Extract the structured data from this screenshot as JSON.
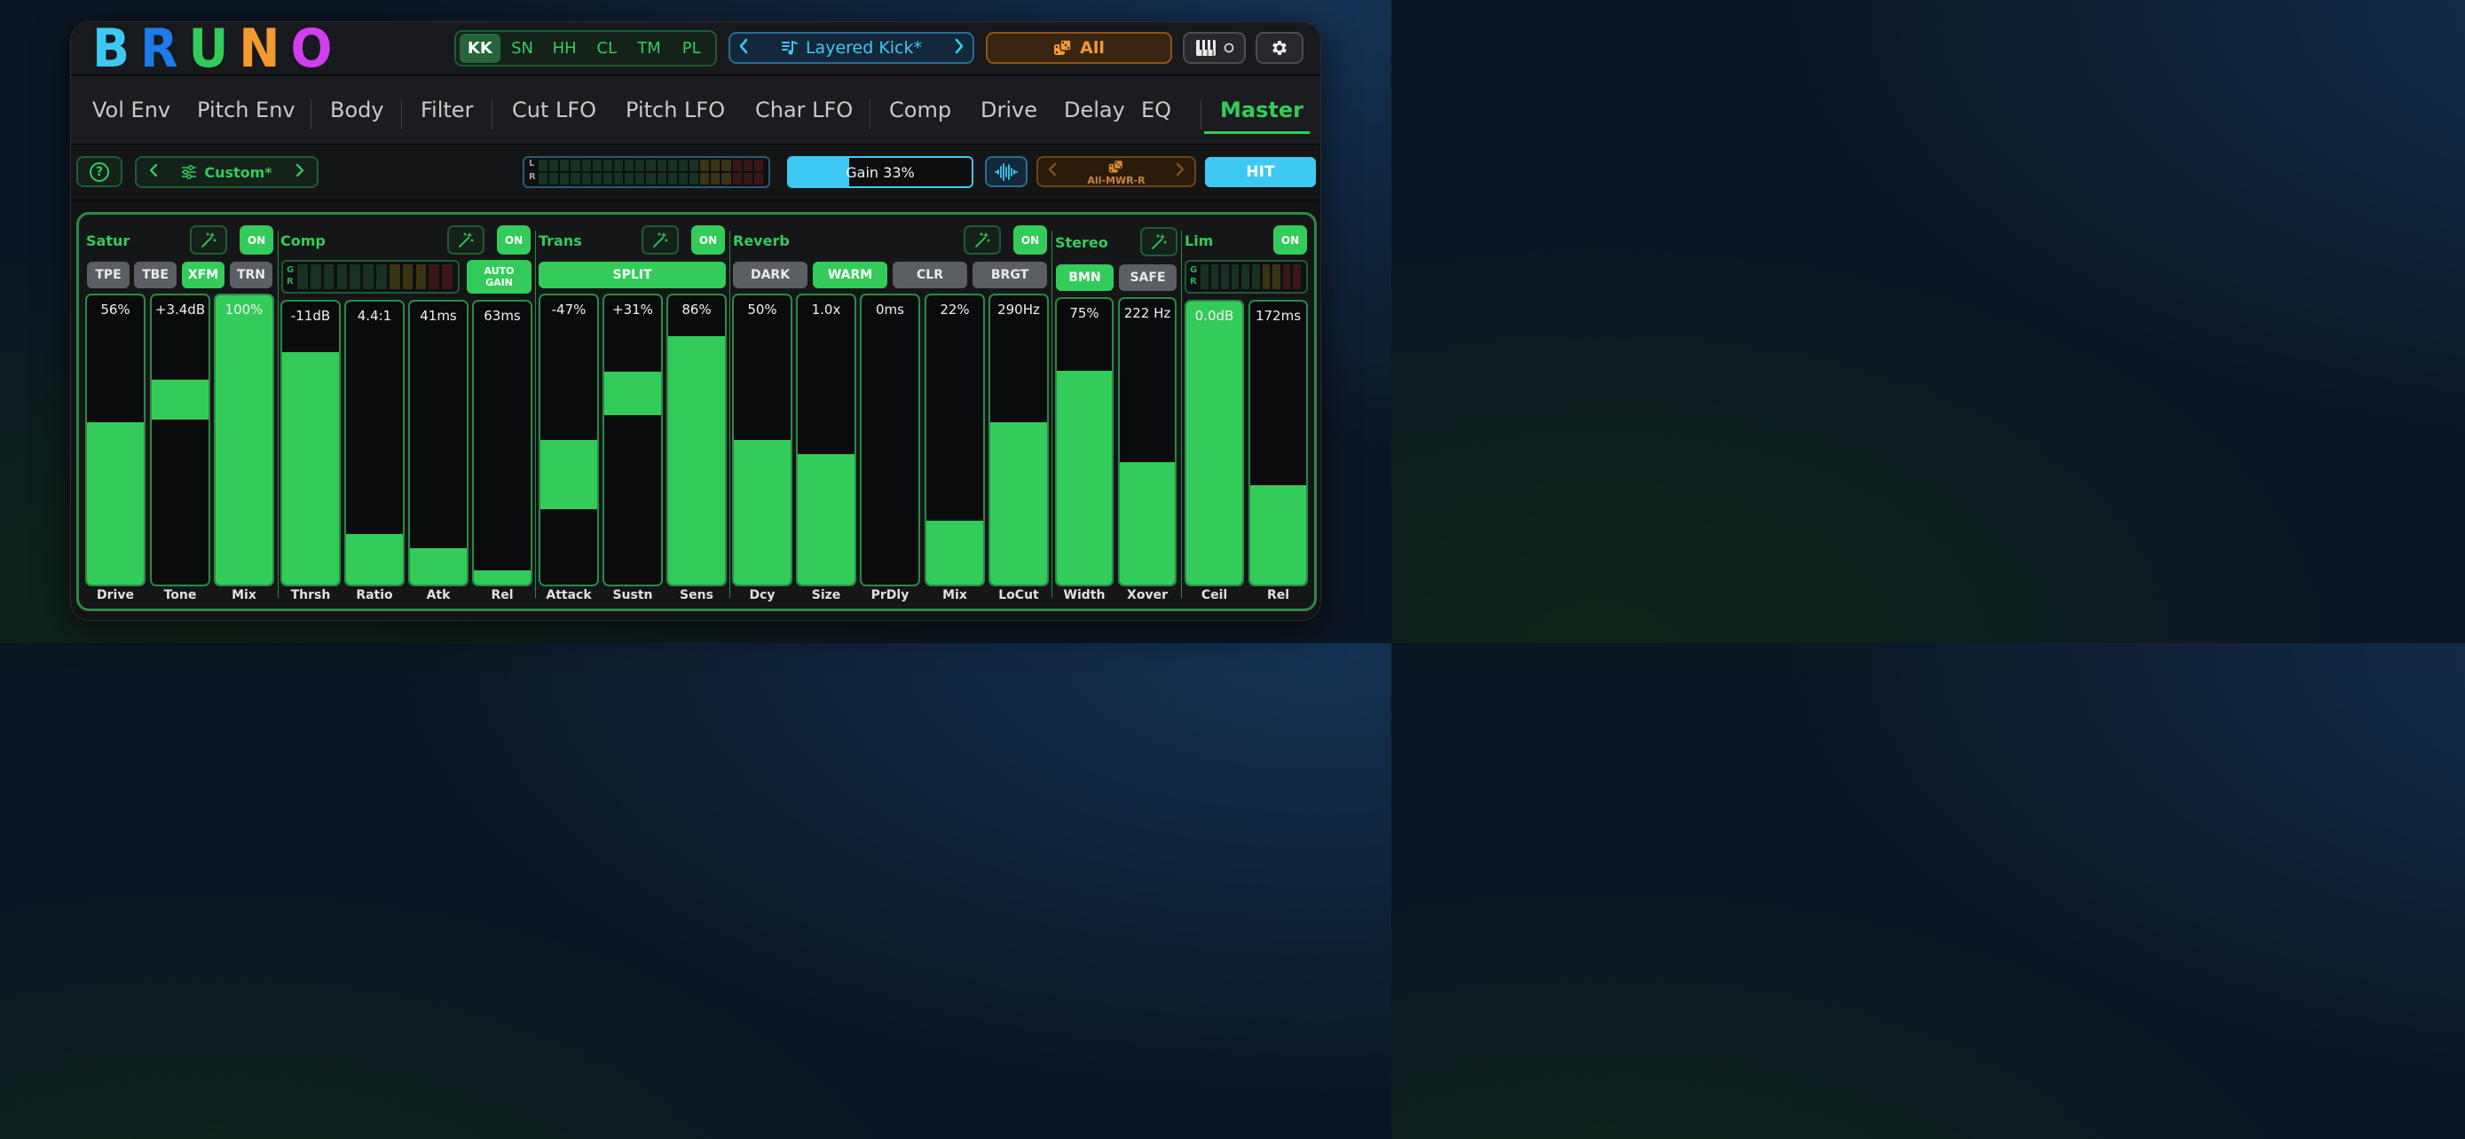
{
  "logo": {
    "letters": [
      "B",
      "R",
      "U",
      "N",
      "O"
    ],
    "colors": [
      "#3ec9f3",
      "#1e7bea",
      "#33cc5a",
      "#f39a31",
      "#d23df0"
    ]
  },
  "drum_tabs": [
    {
      "label": "KK",
      "active": true
    },
    {
      "label": "SN",
      "active": false
    },
    {
      "label": "HH",
      "active": false
    },
    {
      "label": "CL",
      "active": false
    },
    {
      "label": "TM",
      "active": false
    },
    {
      "label": "PL",
      "active": false
    }
  ],
  "preset": {
    "name": "Layered Kick*",
    "icon": "music-note-icon"
  },
  "randomize": {
    "label": "All",
    "icon": "dice-icon"
  },
  "section_tabs": [
    {
      "label": "Vol Env",
      "active": false
    },
    {
      "label": "Pitch Env",
      "active": false
    },
    {
      "label": "Body",
      "active": false
    },
    {
      "label": "Filter",
      "active": false
    },
    {
      "label": "Cut LFO",
      "active": false
    },
    {
      "label": "Pitch LFO",
      "active": false
    },
    {
      "label": "Char LFO",
      "active": false
    },
    {
      "label": "Comp",
      "active": false
    },
    {
      "label": "Drive",
      "active": false
    },
    {
      "label": "Delay",
      "active": false
    },
    {
      "label": "EQ",
      "active": false
    },
    {
      "label": "Master",
      "active": true
    }
  ],
  "toolbar": {
    "help_label": "?",
    "mode_label": "Custom*",
    "meter_l": "L",
    "meter_r": "R",
    "gain_label": "Gain 33%",
    "gain_fraction": 0.33,
    "rand_label": "All-MWR-R",
    "hit_label": "HIT"
  },
  "modules": {
    "satur": {
      "title": "Satur",
      "on_label": "ON",
      "chips": [
        {
          "label": "TPE",
          "active": false
        },
        {
          "label": "TBE",
          "active": false
        },
        {
          "label": "XFM",
          "active": true
        },
        {
          "label": "TRN",
          "active": false
        }
      ],
      "sliders": [
        {
          "label": "Drive",
          "value": "56%",
          "level": 0.56
        },
        {
          "label": "Tone",
          "value": "+3.4dB",
          "center": 0.64,
          "width": 0.14
        },
        {
          "label": "Mix",
          "value": "100%",
          "level": 1.0
        }
      ]
    },
    "comp": {
      "title": "Comp",
      "on_label": "ON",
      "gr_g": "G",
      "gr_r": "R",
      "auto_gain": "AUTO GAIN",
      "sliders": [
        {
          "label": "Thrsh",
          "value": "-11dB",
          "level": 0.82
        },
        {
          "label": "Ratio",
          "value": "4.4:1",
          "level": 0.18
        },
        {
          "label": "Atk",
          "value": "41ms",
          "level": 0.13
        },
        {
          "label": "Rel",
          "value": "63ms",
          "level": 0.05
        }
      ]
    },
    "trans": {
      "title": "Trans",
      "on_label": "ON",
      "split_label": "SPLIT",
      "sliders": [
        {
          "label": "Attack",
          "value": "-47%",
          "center": 0.38,
          "width": 0.24
        },
        {
          "label": "Sustn",
          "value": "+31%",
          "center": 0.66,
          "width": 0.15
        },
        {
          "label": "Sens",
          "value": "86%",
          "level": 0.86
        }
      ]
    },
    "reverb": {
      "title": "Reverb",
      "on_label": "ON",
      "chips": [
        {
          "label": "DARK",
          "active": false
        },
        {
          "label": "WARM",
          "active": true
        },
        {
          "label": "CLR",
          "active": false
        },
        {
          "label": "BRGT",
          "active": false
        }
      ],
      "sliders": [
        {
          "label": "Dcy",
          "value": "50%",
          "level": 0.5
        },
        {
          "label": "Size",
          "value": "1.0x",
          "level": 0.45
        },
        {
          "label": "PrDly",
          "value": "0ms",
          "level": 0.0
        },
        {
          "label": "Mix",
          "value": "22%",
          "level": 0.22
        },
        {
          "label": "LoCut",
          "value": "290Hz",
          "level": 0.56
        }
      ]
    },
    "stereo": {
      "title": "Stereo",
      "chips": [
        {
          "label": "BMN",
          "active": true
        },
        {
          "label": "SAFE",
          "active": false
        }
      ],
      "sliders": [
        {
          "label": "Width",
          "value": "75%",
          "level": 0.75
        },
        {
          "label": "Xover",
          "value": "222 Hz",
          "level": 0.43
        }
      ]
    },
    "lim": {
      "title": "Lim",
      "on_label": "ON",
      "gr_g": "G",
      "gr_r": "R",
      "sliders": [
        {
          "label": "Ceil",
          "value": "0.0dB",
          "level": 1.0
        },
        {
          "label": "Rel",
          "value": "172ms",
          "level": 0.35
        }
      ]
    }
  },
  "accent": "#33cc5a",
  "accent_blue": "#3ec9f3",
  "accent_orange": "#f39a31"
}
